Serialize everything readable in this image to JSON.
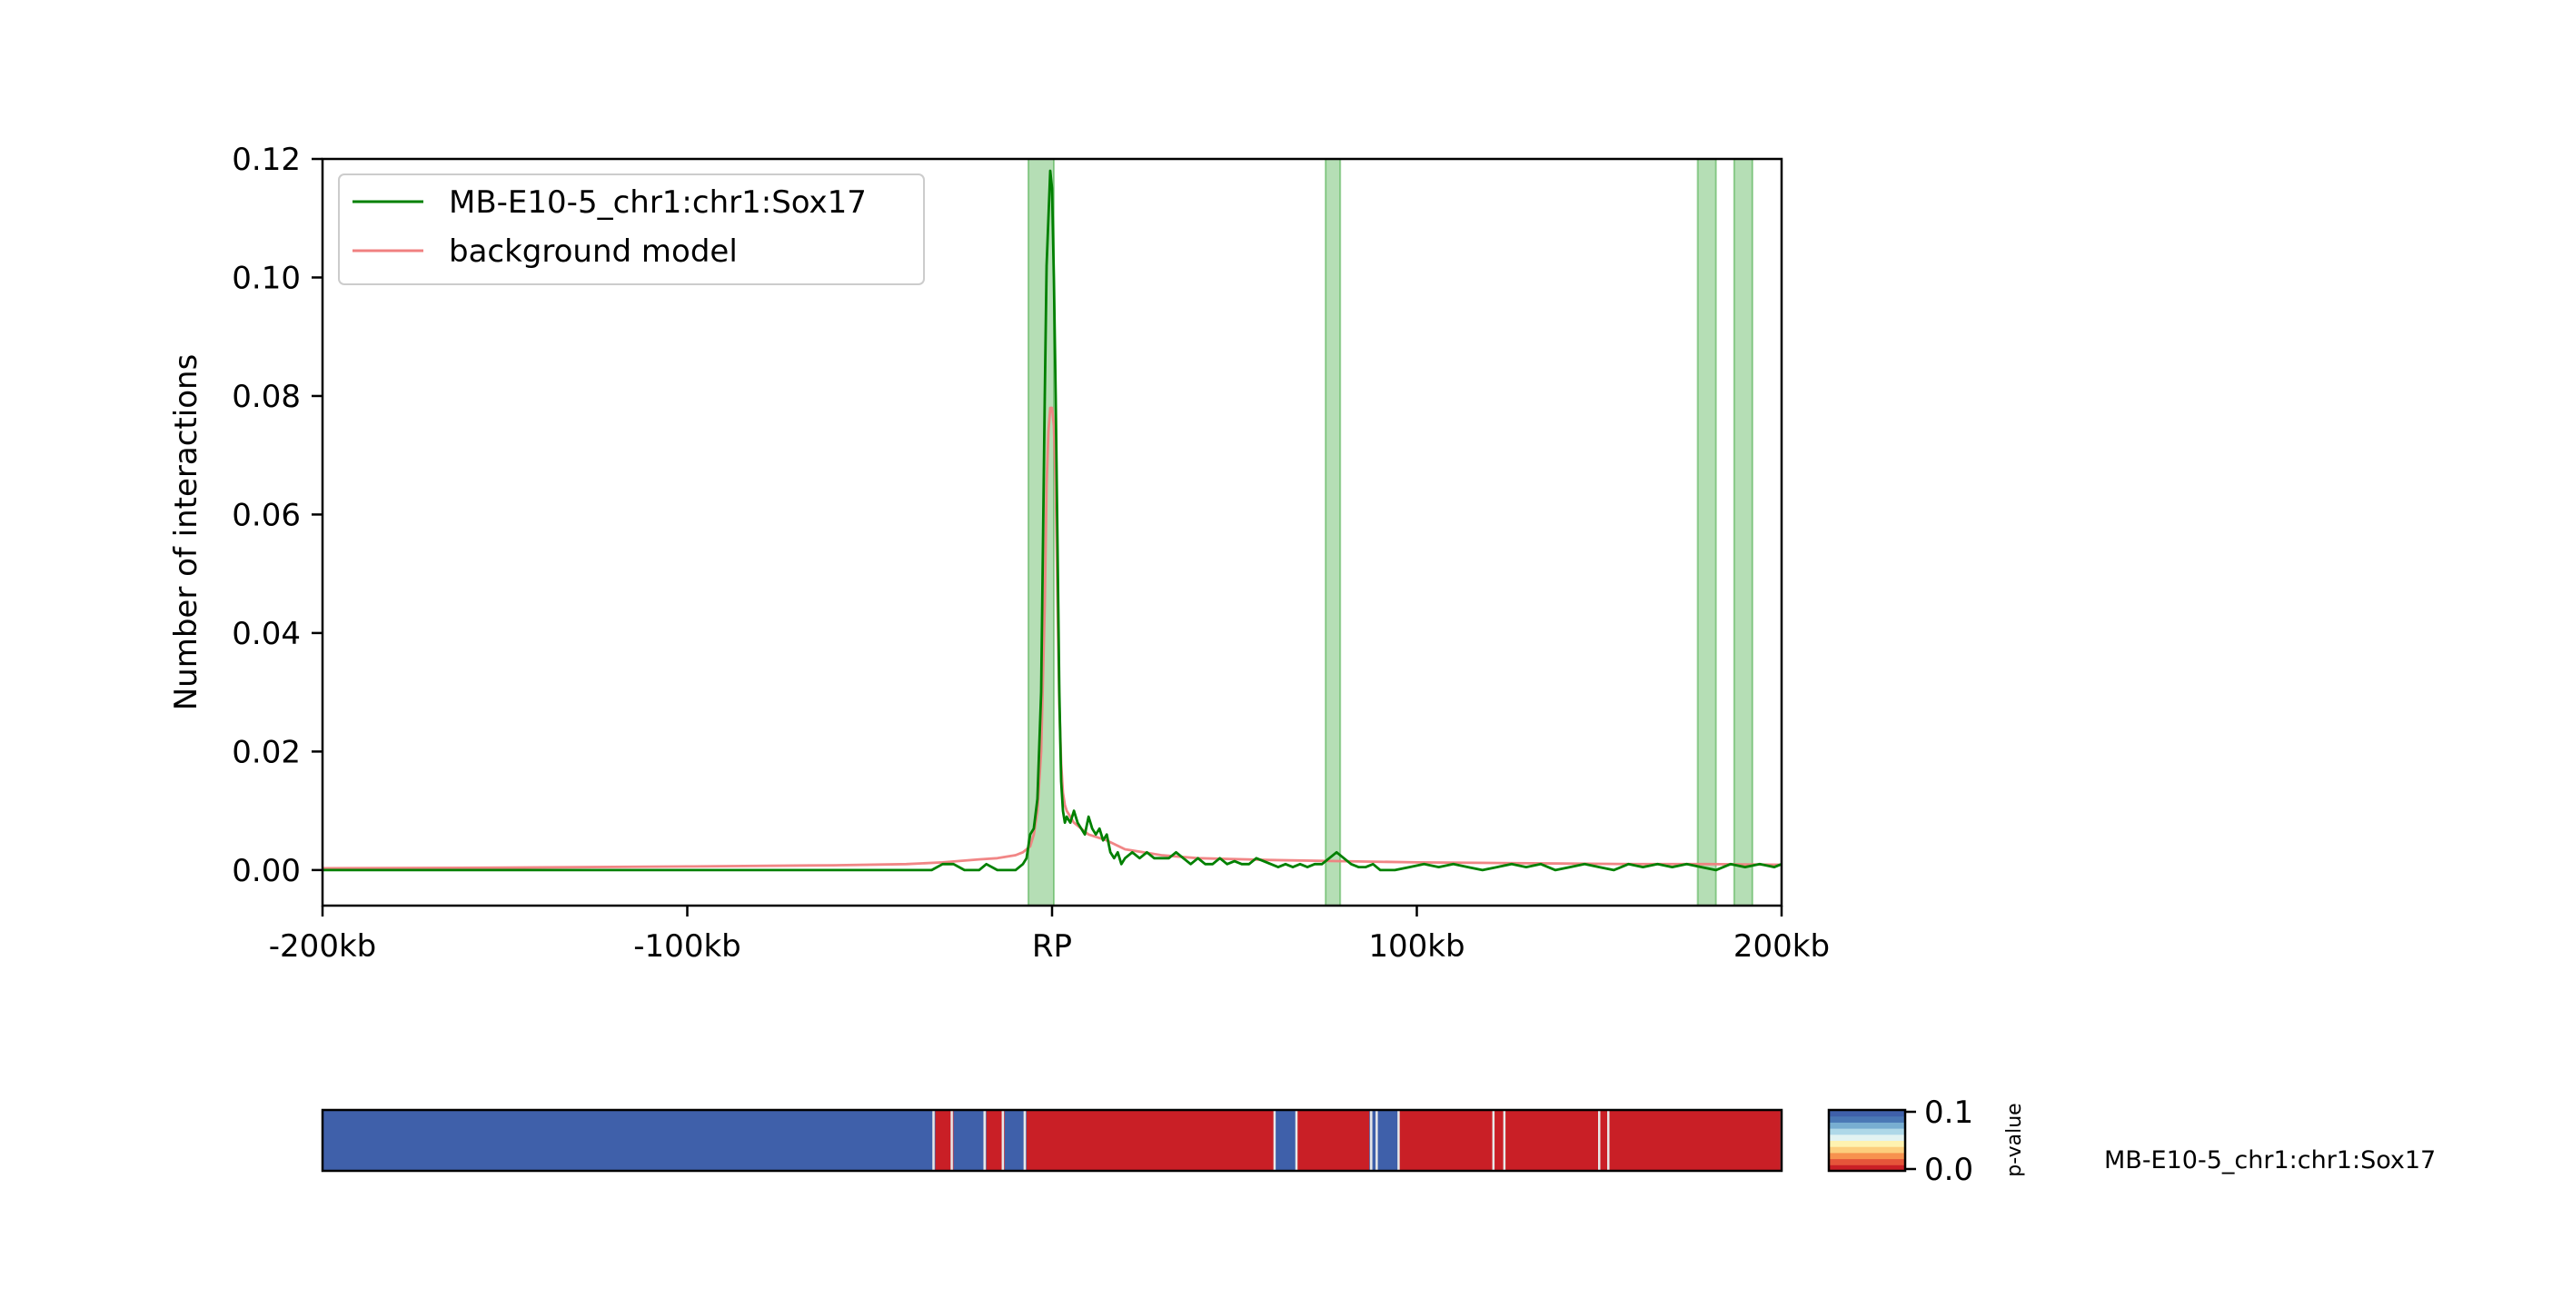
{
  "chart_data": {
    "type": "line",
    "ylabel": "Number of interactions",
    "xlim": [
      -200,
      200
    ],
    "ylim": [
      -0.006,
      0.12
    ],
    "x_ticks": [
      {
        "value": -200,
        "label": "-200kb"
      },
      {
        "value": -100,
        "label": "-100kb"
      },
      {
        "value": 0,
        "label": "RP"
      },
      {
        "value": 100,
        "label": "100kb"
      },
      {
        "value": 200,
        "label": "200kb"
      }
    ],
    "y_ticks": [
      {
        "value": 0.0,
        "label": "0.00"
      },
      {
        "value": 0.02,
        "label": "0.02"
      },
      {
        "value": 0.04,
        "label": "0.04"
      },
      {
        "value": 0.06,
        "label": "0.06"
      },
      {
        "value": 0.08,
        "label": "0.08"
      },
      {
        "value": 0.1,
        "label": "0.10"
      },
      {
        "value": 0.12,
        "label": "0.12"
      }
    ],
    "legend_position": "top-left",
    "highlight_color": "#2ca02c",
    "highlight_regions": [
      [
        -6.5,
        0.5
      ],
      [
        75,
        79
      ],
      [
        177,
        182
      ],
      [
        187,
        192
      ]
    ],
    "series": [
      {
        "name": "MB-E10-5_chr1:chr1:Sox17",
        "color": "#008000",
        "x": [
          -200,
          -150,
          -100,
          -50,
          -33,
          -30,
          -27,
          -24,
          -20,
          -18,
          -15,
          -12,
          -10,
          -8,
          -7,
          -6,
          -5,
          -4,
          -3,
          -2.5,
          -2,
          -1.5,
          -1,
          -0.5,
          0,
          0.5,
          1,
          1.5,
          2,
          2.5,
          3,
          3.5,
          4,
          5,
          6,
          7,
          8,
          9,
          10,
          11,
          12,
          13,
          14,
          15,
          16,
          17,
          18,
          19,
          20,
          22,
          24,
          26,
          28,
          30,
          32,
          34,
          36,
          38,
          40,
          42,
          44,
          46,
          48,
          50,
          52,
          54,
          56,
          58,
          60,
          62,
          64,
          66,
          68,
          70,
          72,
          74,
          76,
          78,
          80,
          82,
          84,
          86,
          88,
          90,
          94,
          98,
          102,
          106,
          110,
          114,
          118,
          122,
          126,
          130,
          134,
          138,
          142,
          146,
          150,
          154,
          158,
          162,
          166,
          170,
          174,
          178,
          182,
          186,
          190,
          194,
          198,
          200
        ],
        "y": [
          0.0,
          0.0,
          0.0,
          0.0,
          0.0,
          0.001,
          0.001,
          0.0,
          0.0,
          0.001,
          0.0,
          0.0,
          0.0,
          0.001,
          0.002,
          0.006,
          0.007,
          0.012,
          0.03,
          0.055,
          0.08,
          0.102,
          0.11,
          0.118,
          0.115,
          0.1,
          0.08,
          0.055,
          0.03,
          0.015,
          0.01,
          0.008,
          0.009,
          0.008,
          0.01,
          0.008,
          0.007,
          0.006,
          0.009,
          0.007,
          0.006,
          0.007,
          0.005,
          0.006,
          0.003,
          0.002,
          0.003,
          0.001,
          0.002,
          0.003,
          0.002,
          0.003,
          0.002,
          0.002,
          0.002,
          0.003,
          0.002,
          0.001,
          0.002,
          0.001,
          0.001,
          0.002,
          0.001,
          0.0015,
          0.001,
          0.001,
          0.002,
          0.0015,
          0.001,
          0.0005,
          0.001,
          0.0005,
          0.001,
          0.0005,
          0.001,
          0.001,
          0.002,
          0.003,
          0.002,
          0.001,
          0.0005,
          0.0005,
          0.001,
          0.0,
          0.0,
          0.0005,
          0.001,
          0.0005,
          0.001,
          0.0005,
          0.0,
          0.0005,
          0.001,
          0.0005,
          0.001,
          0.0,
          0.0005,
          0.001,
          0.0005,
          0.0,
          0.001,
          0.0005,
          0.001,
          0.0005,
          0.001,
          0.0005,
          0.0,
          0.001,
          0.0005,
          0.001,
          0.0005,
          0.001
        ]
      },
      {
        "name": "background model",
        "color": "#f08080",
        "x": [
          -200,
          -150,
          -100,
          -60,
          -40,
          -30,
          -20,
          -15,
          -10,
          -8,
          -6,
          -5,
          -4,
          -3,
          -2,
          -1.5,
          -1,
          -0.5,
          0,
          0.5,
          1,
          1.5,
          2,
          2.5,
          3,
          3.5,
          4,
          5,
          6,
          8,
          10,
          15,
          20,
          30,
          40,
          60,
          80,
          100,
          120,
          140,
          160,
          180,
          200
        ],
        "y": [
          0.0003,
          0.0004,
          0.0006,
          0.0008,
          0.001,
          0.0013,
          0.0018,
          0.002,
          0.0025,
          0.003,
          0.004,
          0.006,
          0.01,
          0.02,
          0.045,
          0.065,
          0.074,
          0.078,
          0.078,
          0.075,
          0.065,
          0.045,
          0.028,
          0.018,
          0.013,
          0.011,
          0.01,
          0.009,
          0.008,
          0.007,
          0.006,
          0.005,
          0.0035,
          0.0025,
          0.002,
          0.0017,
          0.0015,
          0.0013,
          0.0012,
          0.0011,
          0.001,
          0.001,
          0.0009
        ]
      }
    ]
  },
  "pvalue_track": {
    "label": "MB-E10-5_chr1:chr1:Sox17",
    "colorbar_label": "p-value",
    "colorbar_ticks": [
      {
        "value": 0.1,
        "label": "0.1"
      },
      {
        "value": 0.0,
        "label": "0.0"
      }
    ],
    "colormap": [
      "#c91f26",
      "#e5553a",
      "#f7924f",
      "#fcce7d",
      "#fef2b0",
      "#e2f3f2",
      "#aed8e8",
      "#78aed1",
      "#4a78b5",
      "#3f60aa"
    ],
    "segments": [
      {
        "start": -200,
        "end": -32,
        "p": 0.1
      },
      {
        "start": -32,
        "end": -27,
        "p": 0.0
      },
      {
        "start": -27,
        "end": -18,
        "p": 0.1
      },
      {
        "start": -18,
        "end": -13,
        "p": 0.0
      },
      {
        "start": -13,
        "end": -7,
        "p": 0.1
      },
      {
        "start": -7,
        "end": 61,
        "p": 0.0
      },
      {
        "start": 61,
        "end": 67,
        "p": 0.1
      },
      {
        "start": 67,
        "end": 87,
        "p": 0.0
      },
      {
        "start": 87,
        "end": 95,
        "p": 0.1
      },
      {
        "start": 95,
        "end": 200,
        "p": 0.0
      }
    ],
    "separators": [
      -32.5,
      -27.5,
      -18.5,
      -13.5,
      -7.5,
      61,
      67,
      87.5,
      89,
      95,
      121,
      124,
      150,
      152.5,
      200
    ]
  }
}
